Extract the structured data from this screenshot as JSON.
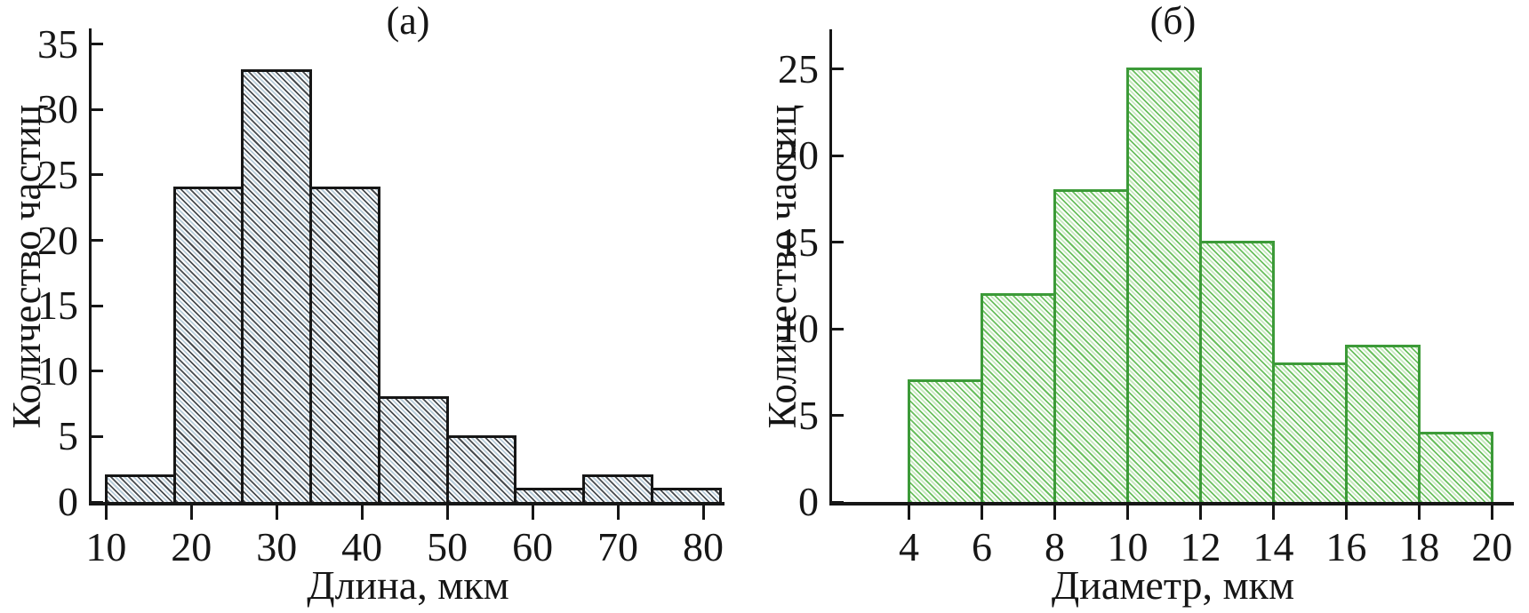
{
  "figure": {
    "background_color": "#ffffff",
    "text_color": "#161616"
  },
  "chart_data": [
    {
      "type": "bar",
      "subtype": "histogram",
      "title": "(а)",
      "xlabel": "Длина, мкм",
      "ylabel": "Количество частиц",
      "bin_edges": [
        10,
        18,
        26,
        34,
        42,
        50,
        58,
        66,
        74,
        82
      ],
      "values": [
        2,
        24,
        33,
        24,
        8,
        5,
        1,
        2,
        1
      ],
      "x_ticks": [
        10,
        20,
        30,
        40,
        50,
        60,
        70,
        80
      ],
      "y_ticks": [
        0,
        5,
        10,
        15,
        20,
        25,
        30,
        35
      ],
      "xlim": [
        8.3,
        82.5
      ],
      "ylim": [
        0,
        36.2
      ],
      "grid": false,
      "legend": null,
      "style": {
        "axis_color": "#161616",
        "edge_color": "#161616",
        "hatch_pattern": "diagonal-backslash",
        "hatch_color_dark": "#474b4f",
        "hatch_color_light": "#b9cdda"
      }
    },
    {
      "type": "bar",
      "subtype": "histogram",
      "title": "(б)",
      "xlabel": "Диаметр, мкм",
      "ylabel": "Количество частиц",
      "bin_edges": [
        4,
        6,
        8,
        10,
        12,
        14,
        16,
        18,
        20
      ],
      "values": [
        7,
        12,
        18,
        25,
        15,
        8,
        9,
        4
      ],
      "x_ticks": [
        4,
        6,
        8,
        10,
        12,
        14,
        16,
        18,
        20
      ],
      "y_ticks": [
        0,
        5,
        10,
        15,
        20,
        25
      ],
      "xlim": [
        1.89,
        20.6
      ],
      "ylim": [
        0,
        27.3
      ],
      "grid": false,
      "legend": null,
      "style": {
        "axis_color": "#161616",
        "edge_color": "#3c9a38",
        "hatch_pattern": "diagonal-backslash",
        "hatch_color_dark": "#6abf5e",
        "hatch_color_light": "#c8e9c0"
      }
    }
  ]
}
